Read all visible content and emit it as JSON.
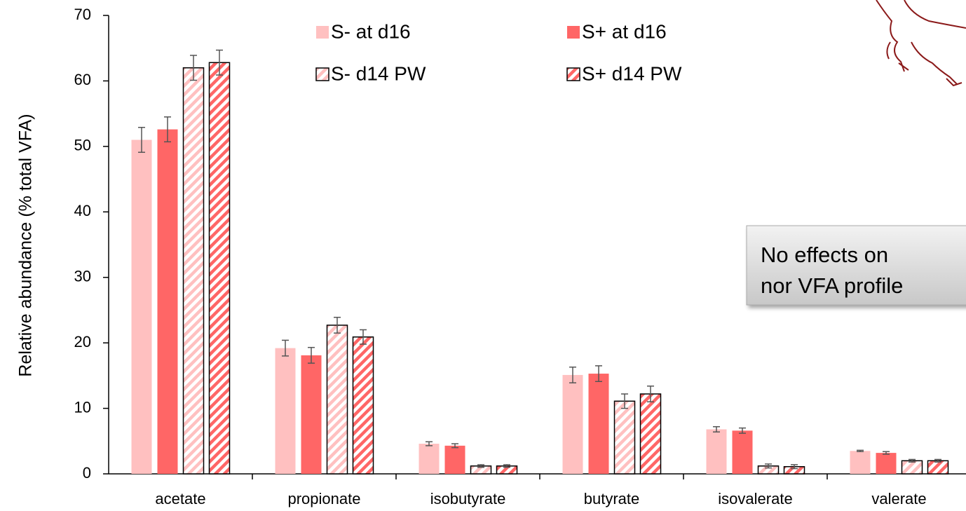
{
  "chart_data": {
    "type": "bar",
    "y_label": "Relative abundance  (% total VFA)",
    "categories": [
      "acetate",
      "propionate",
      "isobutyrate",
      "butyrate",
      "isovalerate",
      "valerate"
    ],
    "series": [
      {
        "name": "S- at d16",
        "color": "#ffc0c0",
        "hatched": false,
        "values": [
          51,
          19.2,
          4.6,
          15.1,
          6.8,
          3.5
        ],
        "errors": [
          1.9,
          1.2,
          0.3,
          1.2,
          0.4,
          0.1
        ]
      },
      {
        "name": "S+ at d16",
        "color": "#ff6666",
        "hatched": false,
        "values": [
          52.6,
          18.1,
          4.3,
          15.3,
          6.6,
          3.2
        ],
        "errors": [
          1.9,
          1.2,
          0.3,
          1.2,
          0.4,
          0.2
        ]
      },
      {
        "name": "S- d14 PW",
        "color": "#ffc0c0",
        "hatched": true,
        "values": [
          62,
          22.7,
          1.2,
          11.1,
          1.2,
          2.0
        ],
        "errors": [
          1.9,
          1.2,
          0.2,
          1.1,
          0.3,
          0.2
        ]
      },
      {
        "name": "S+ d14 PW",
        "color": "#ff6666",
        "hatched": true,
        "values": [
          62.8,
          20.9,
          1.2,
          12.2,
          1.1,
          2.0
        ],
        "errors": [
          1.9,
          1.1,
          0.2,
          1.2,
          0.3,
          0.2
        ]
      }
    ],
    "ylim": [
      0,
      70
    ],
    "yticks": [
      0,
      10,
      20,
      30,
      40,
      50,
      60,
      70
    ],
    "grid": false,
    "annotation": [
      "No effects on",
      "nor VFA profile"
    ]
  }
}
